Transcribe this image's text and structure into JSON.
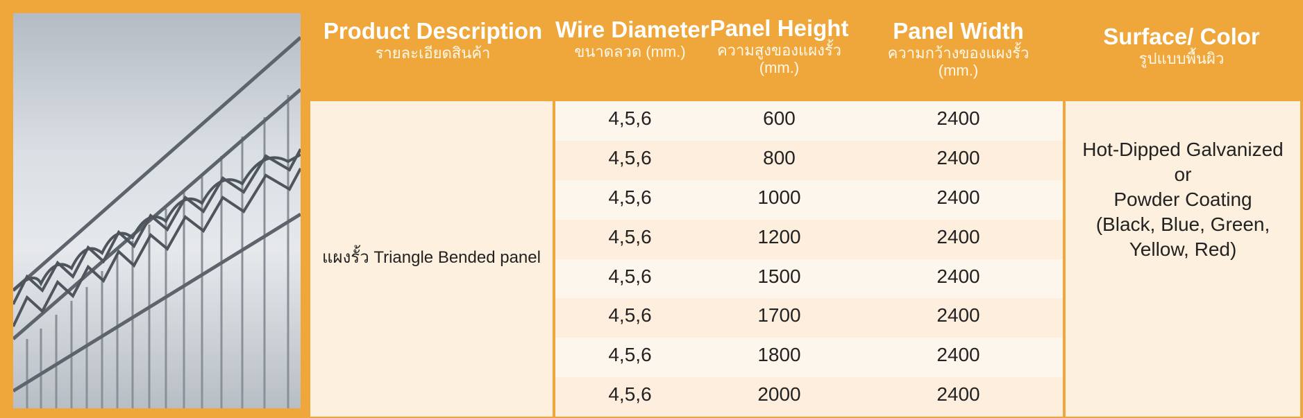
{
  "headers": {
    "description": {
      "en": "Product Description",
      "th": "รายละเอียดสินค้า"
    },
    "wire": {
      "en": "Wire Diameter",
      "th": "ขนาดลวด (mm.)"
    },
    "height": {
      "en": "Panel Height",
      "th": "ความสูงของแผงรั้ว",
      "unit": "(mm.)"
    },
    "width": {
      "en": "Panel Width",
      "th": "ความกว้างของแผงรั้ว",
      "unit": "(mm.)"
    },
    "surface": {
      "en": "Surface/ Color",
      "th": "รูปแบบพื้นผิว"
    }
  },
  "product": "แผงรั้ว Triangle Bended panel",
  "rows": [
    {
      "wire": "4,5,6",
      "height": "600",
      "width": "2400"
    },
    {
      "wire": "4,5,6",
      "height": "800",
      "width": "2400"
    },
    {
      "wire": "4,5,6",
      "height": "1000",
      "width": "2400"
    },
    {
      "wire": "4,5,6",
      "height": "1200",
      "width": "2400"
    },
    {
      "wire": "4,5,6",
      "height": "1500",
      "width": "2400"
    },
    {
      "wire": "4,5,6",
      "height": "1700",
      "width": "2400"
    },
    {
      "wire": "4,5,6",
      "height": "1800",
      "width": "2400"
    },
    {
      "wire": "4,5,6",
      "height": "2000",
      "width": "2400"
    }
  ],
  "surface_lines": [
    "Hot-Dipped Galvanized",
    "or",
    "Powder Coating",
    "(Black, Blue, Green,",
    "Yellow, Red)"
  ],
  "colors": {
    "accent": "#efa73b",
    "row_light": "#fdf6ec",
    "row_dark": "#fdeedd"
  }
}
